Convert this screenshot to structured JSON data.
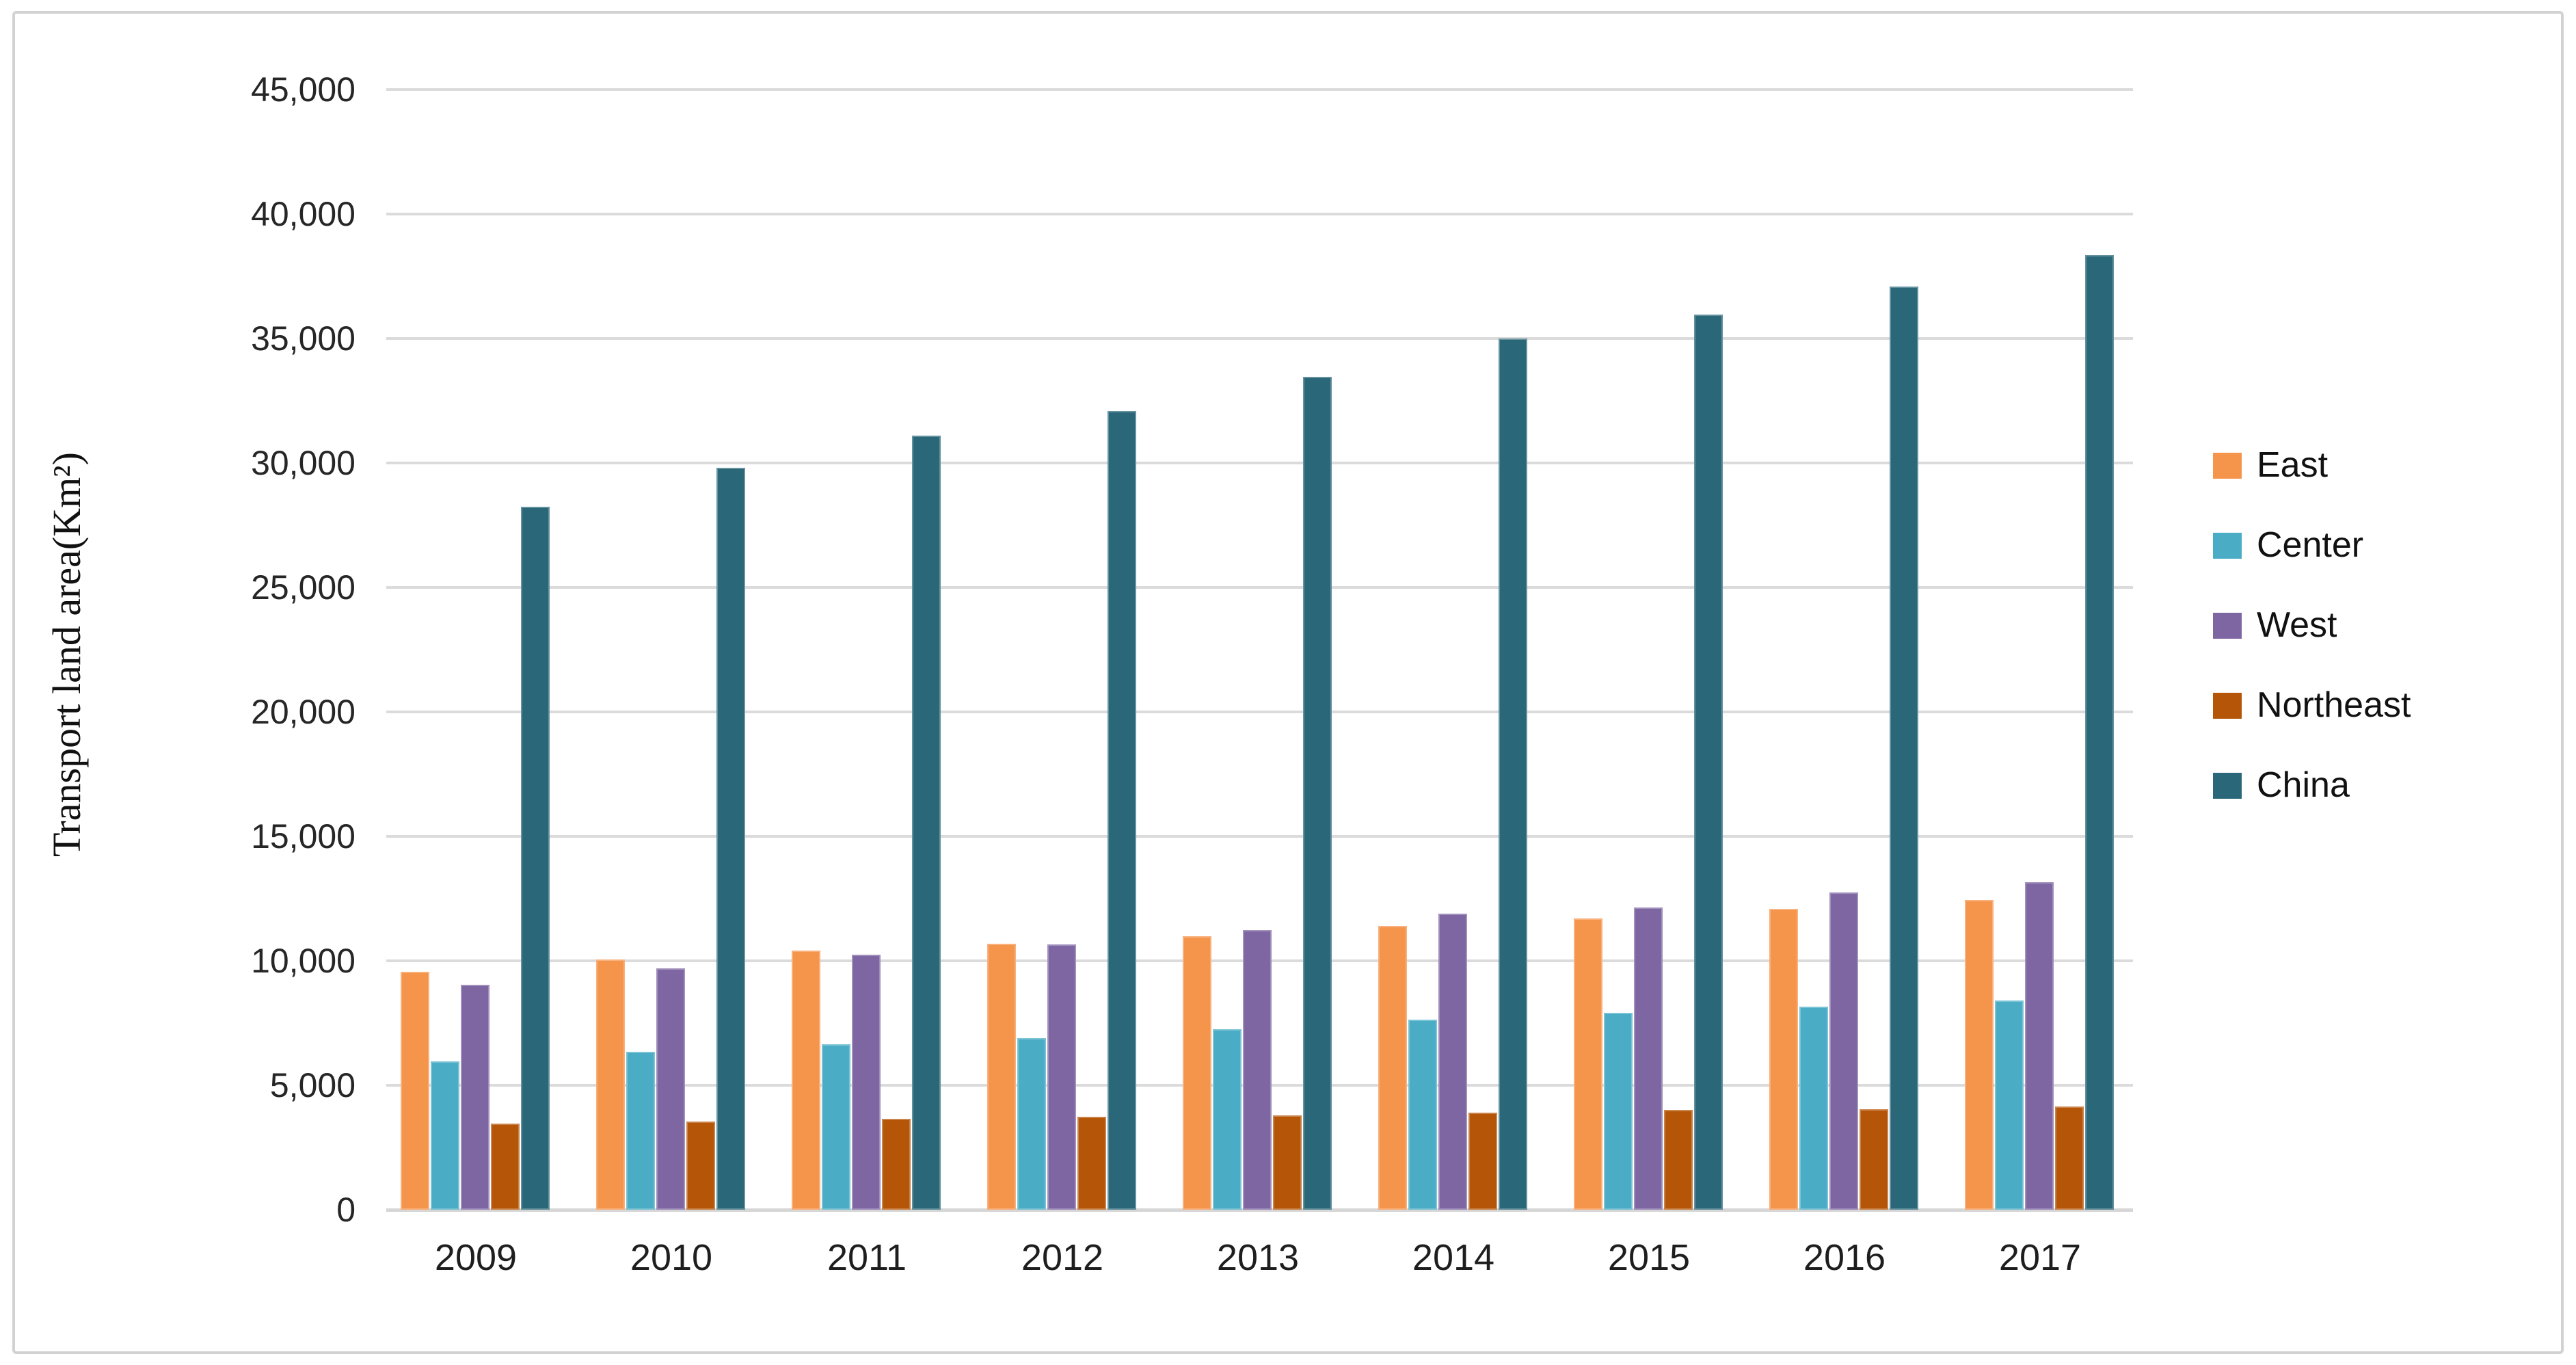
{
  "chart_data": {
    "type": "bar",
    "title": "",
    "ylabel": "Transport land area(Km²)",
    "xlabel": "",
    "categories": [
      "2009",
      "2010",
      "2011",
      "2012",
      "2013",
      "2014",
      "2015",
      "2016",
      "2017"
    ],
    "series": [
      {
        "name": "East",
        "color": "#F5944B",
        "values": [
          9550,
          10050,
          10400,
          10700,
          11000,
          11400,
          11700,
          12100,
          12450
        ]
      },
      {
        "name": "Center",
        "color": "#4AACC5",
        "values": [
          5950,
          6350,
          6650,
          6900,
          7250,
          7650,
          7900,
          8150,
          8400
        ]
      },
      {
        "name": "West",
        "color": "#7D66A2",
        "values": [
          9050,
          9700,
          10250,
          10650,
          11250,
          11900,
          12150,
          12750,
          13150
        ]
      },
      {
        "name": "Northeast",
        "color": "#B45508",
        "values": [
          3450,
          3550,
          3650,
          3750,
          3800,
          3900,
          4000,
          4050,
          4150
        ]
      },
      {
        "name": "China",
        "color": "#2A6879",
        "values": [
          28250,
          29800,
          31100,
          32100,
          33450,
          35000,
          35950,
          37100,
          38350
        ]
      }
    ],
    "ylim": [
      0,
      45000
    ],
    "ytick_step": 5000,
    "ytick_labels": [
      "0",
      "5,000",
      "10,000",
      "15,000",
      "20,000",
      "25,000",
      "30,000",
      "35,000",
      "40,000",
      "45,000"
    ],
    "grid": true,
    "legend_position": "right",
    "colors": {
      "gridline": "#dbdbdb",
      "axis_text": "#262626",
      "frame": "#d2d2d2",
      "background": "#ffffff"
    }
  }
}
